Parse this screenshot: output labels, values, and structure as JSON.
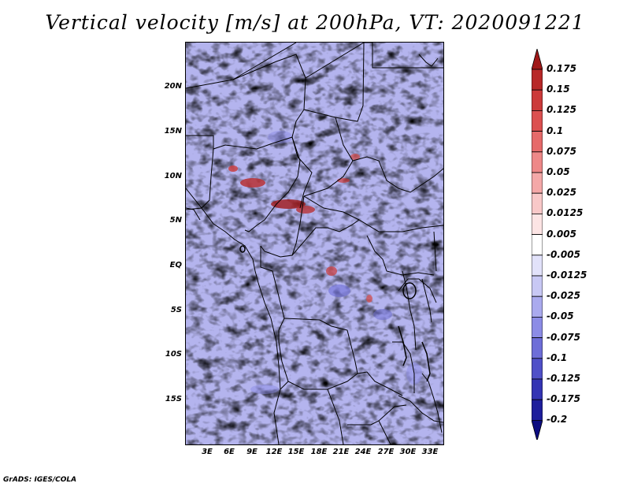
{
  "title": "Vertical velocity [m/s] at 200hPa, VT: 2020091221",
  "credit": "GrADS: IGES/COLA",
  "lat_labels": [
    "20N",
    "15N",
    "10N",
    "5N",
    "EQ",
    "5S",
    "10S",
    "15S"
  ],
  "lon_labels": [
    "3E",
    "6E",
    "9E",
    "12E",
    "15E",
    "18E",
    "21E",
    "24E",
    "27E",
    "30E",
    "33E"
  ],
  "colorbar": {
    "levels": [
      "0.175",
      "0.15",
      "0.125",
      "0.1",
      "0.075",
      "0.05",
      "0.025",
      "0.0125",
      "0.005",
      "-0.005",
      "-0.0125",
      "-0.025",
      "-0.05",
      "-0.075",
      "-0.1",
      "-0.125",
      "-0.175",
      "-0.2"
    ],
    "colors": [
      "#a01818",
      "#b82828",
      "#cc3a3a",
      "#dc5050",
      "#e66a6a",
      "#ee8888",
      "#f4a8a8",
      "#f8c8c8",
      "#fce4e4",
      "#ffffff",
      "#e2e2fa",
      "#c8c8f4",
      "#aaaaee",
      "#8c8ce6",
      "#6e6ed8",
      "#5050c8",
      "#3434b4",
      "#1e1e9c",
      "#0c0c80"
    ]
  }
}
